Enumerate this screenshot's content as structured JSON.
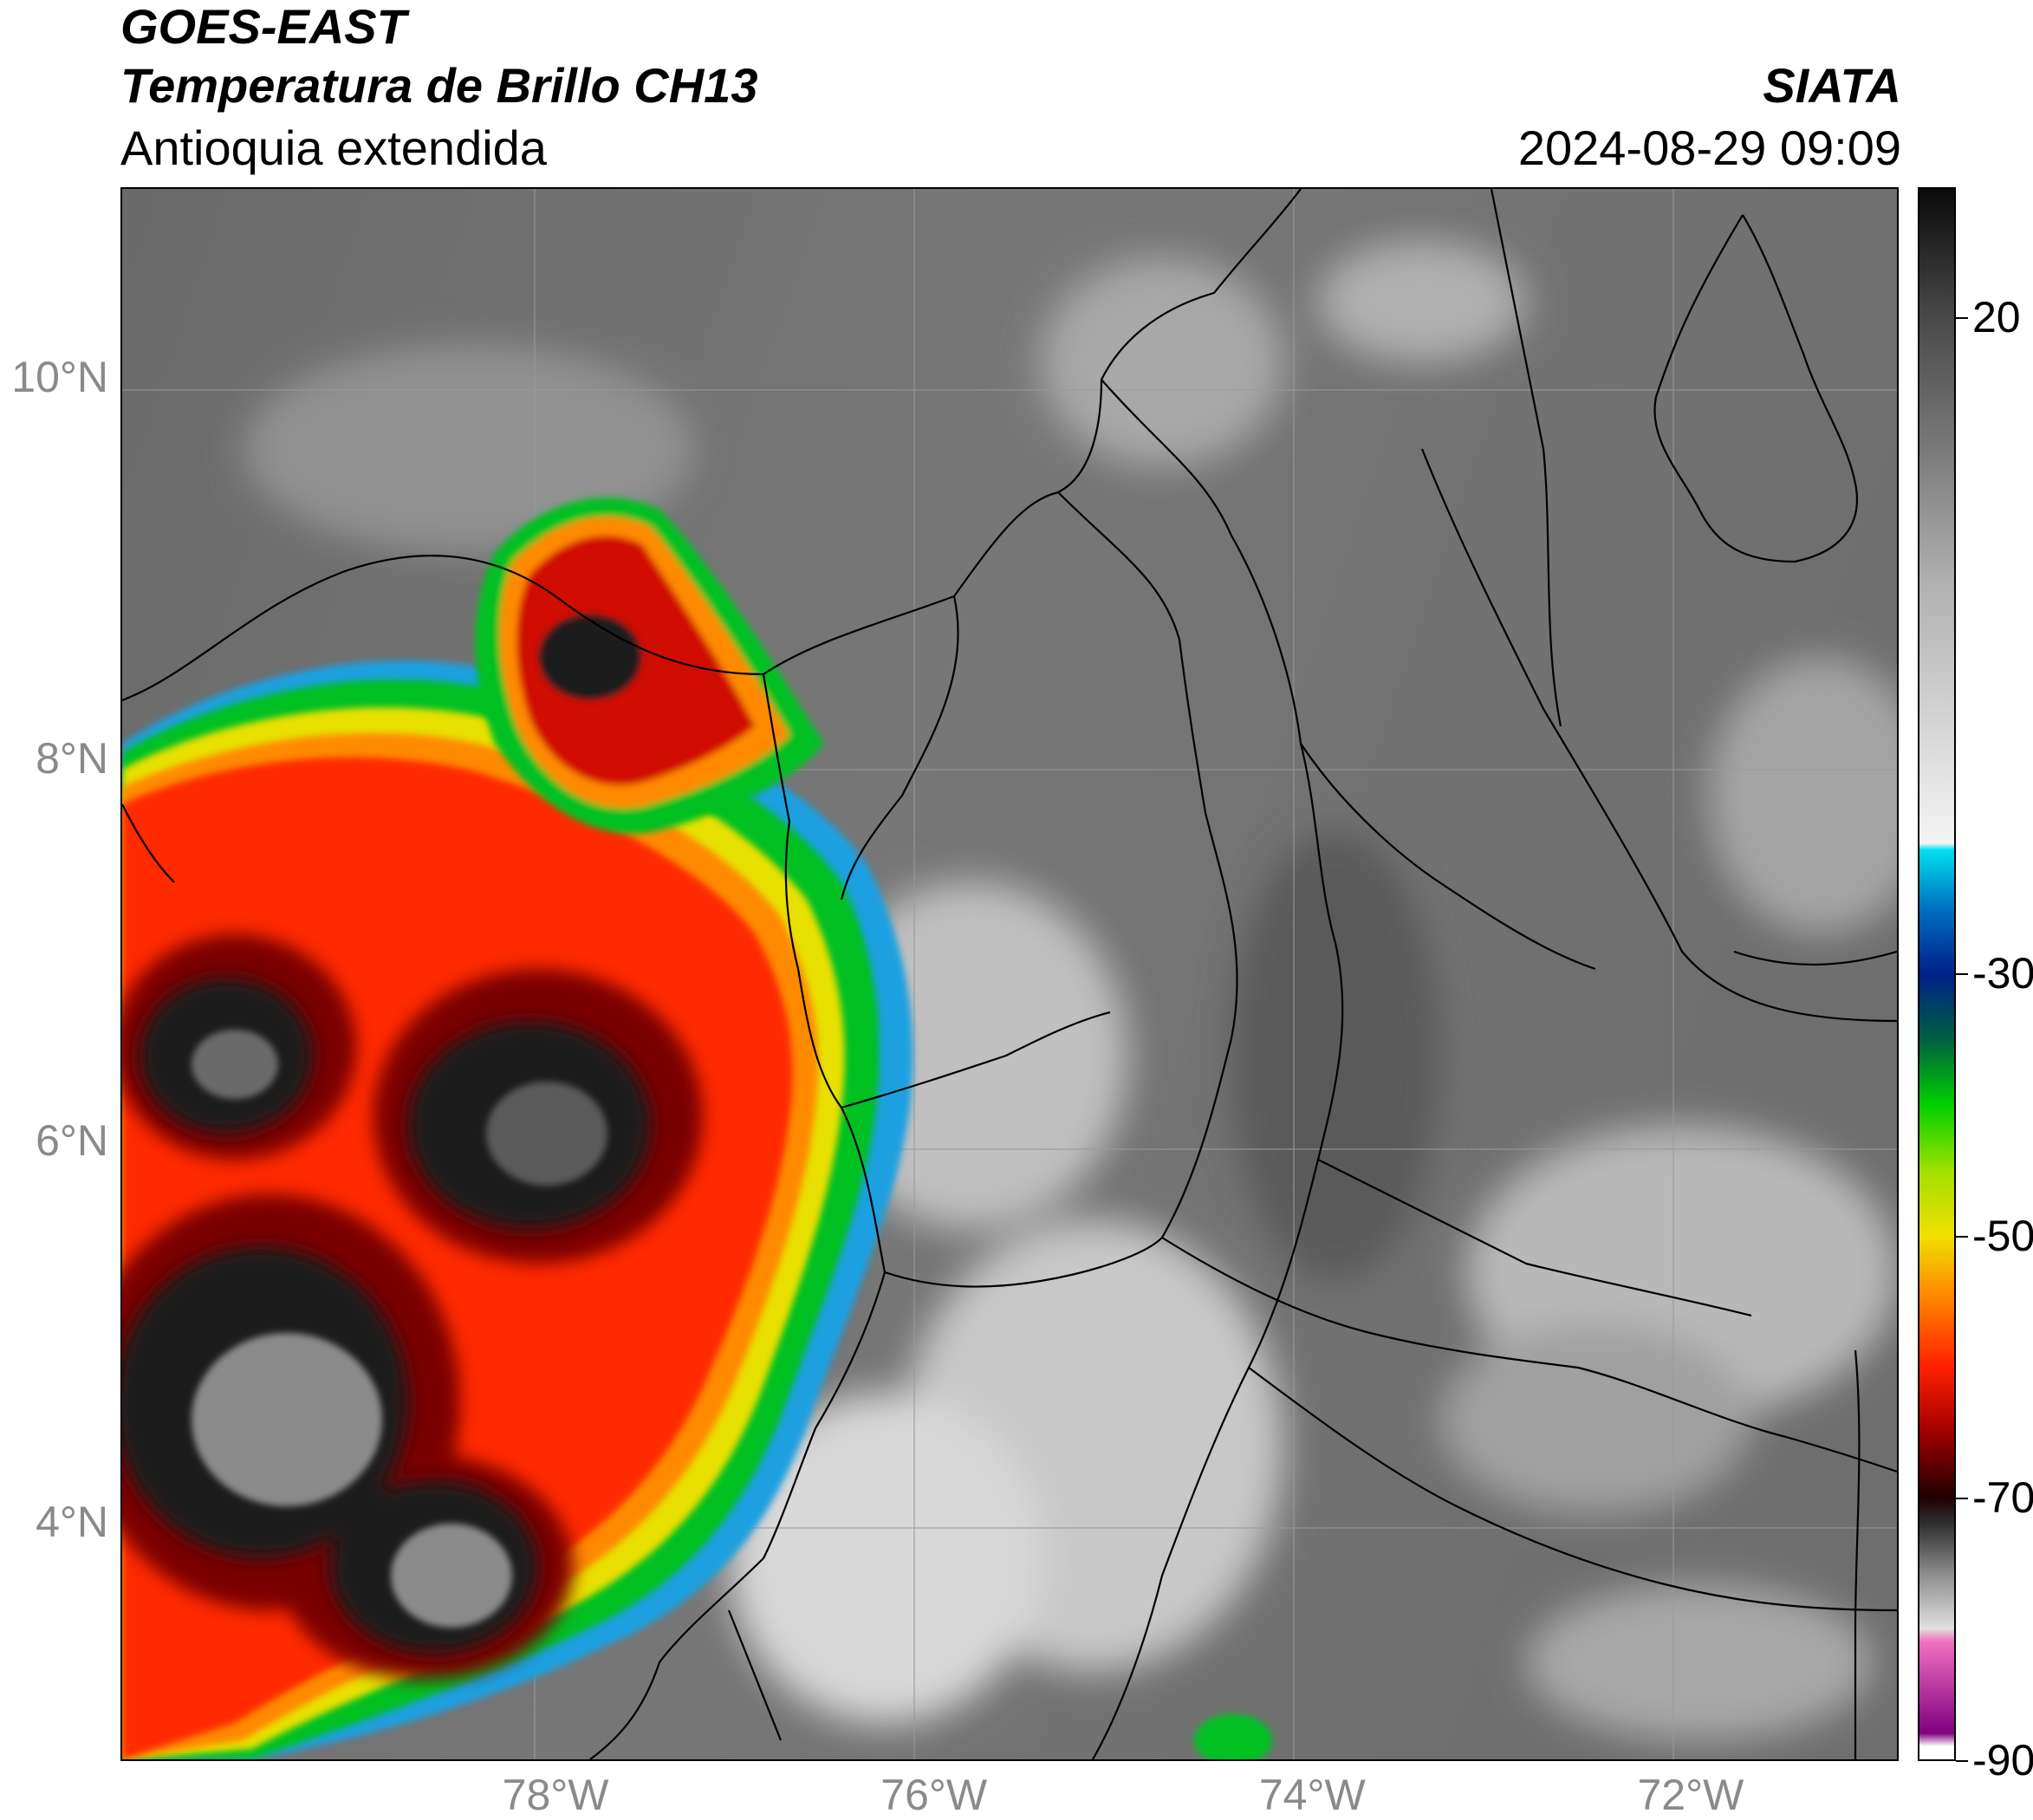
{
  "header": {
    "satellite": "GOES-EAST",
    "product": "Temperatura de Brillo CH13",
    "region": "Antioquia extendida",
    "organization": "SIATA",
    "timestamp": "2024-08-29 09:09"
  },
  "map": {
    "lat_range": [
      2.75,
      11.0
    ],
    "lon_range": [
      -80.3,
      -70.9
    ],
    "lat_ticks": [
      {
        "value": 10,
        "label": "10°N"
      },
      {
        "value": 8,
        "label": "8°N"
      },
      {
        "value": 6,
        "label": "6°N"
      },
      {
        "value": 4,
        "label": "4°N"
      }
    ],
    "lon_ticks": [
      {
        "value": -78,
        "label": "78°W"
      },
      {
        "value": -76,
        "label": "76°W"
      },
      {
        "value": -74,
        "label": "74°W"
      },
      {
        "value": -72,
        "label": "72°W"
      }
    ],
    "grid": true
  },
  "colorbar": {
    "range": [
      -90,
      30
    ],
    "ticks": [
      {
        "value": 20,
        "label": "20"
      },
      {
        "value": -30,
        "label": "-30"
      },
      {
        "value": -50,
        "label": "-50"
      },
      {
        "value": -70,
        "label": "-70"
      },
      {
        "value": -90,
        "label": "-90"
      }
    ],
    "stops": [
      {
        "value": 30,
        "color": "#0a0a0a"
      },
      {
        "value": 20,
        "color": "#4a4a4a"
      },
      {
        "value": 10,
        "color": "#7a7a7a"
      },
      {
        "value": 0,
        "color": "#b0b0b0"
      },
      {
        "value": -20,
        "color": "#f4f4f4"
      },
      {
        "value": -20.5,
        "color": "#00e0f0"
      },
      {
        "value": -25,
        "color": "#0070c0"
      },
      {
        "value": -30,
        "color": "#00208a"
      },
      {
        "value": -35,
        "color": "#006040"
      },
      {
        "value": -40,
        "color": "#00d000"
      },
      {
        "value": -45,
        "color": "#a0e000"
      },
      {
        "value": -50,
        "color": "#f0e000"
      },
      {
        "value": -55,
        "color": "#ff8000"
      },
      {
        "value": -60,
        "color": "#ff2000"
      },
      {
        "value": -65,
        "color": "#a00000"
      },
      {
        "value": -70,
        "color": "#200000"
      },
      {
        "value": -72,
        "color": "#303030"
      },
      {
        "value": -76,
        "color": "#909090"
      },
      {
        "value": -80,
        "color": "#e0e0e0"
      },
      {
        "value": -81,
        "color": "#f070c0"
      },
      {
        "value": -88,
        "color": "#800080"
      },
      {
        "value": -89,
        "color": "#ffffff"
      }
    ]
  }
}
